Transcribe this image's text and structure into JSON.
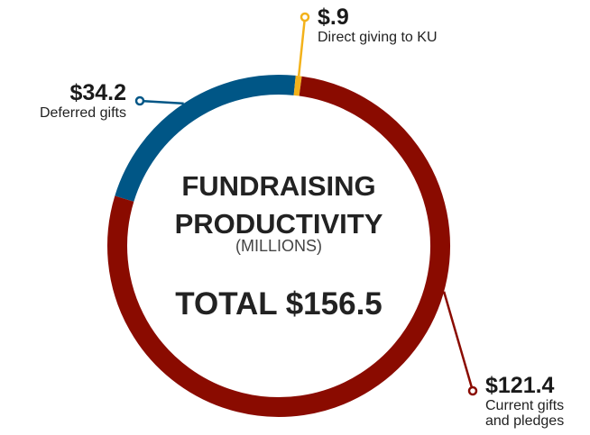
{
  "chart_data": {
    "type": "donut",
    "title": "FUNDRAISING PRODUCTIVITY",
    "subtitle": "(MILLIONS)",
    "annotation": "TOTAL $156.5",
    "categories": [
      "Deferred gifts",
      "Direct giving to KU",
      "Current gifts and pledges"
    ],
    "values": [
      34.2,
      0.9,
      121.4
    ],
    "value_labels": [
      "$34.2",
      "$.9",
      "$121.4"
    ],
    "colors": [
      "#005686",
      "#f3b21b",
      "#8a0b00"
    ]
  }
}
